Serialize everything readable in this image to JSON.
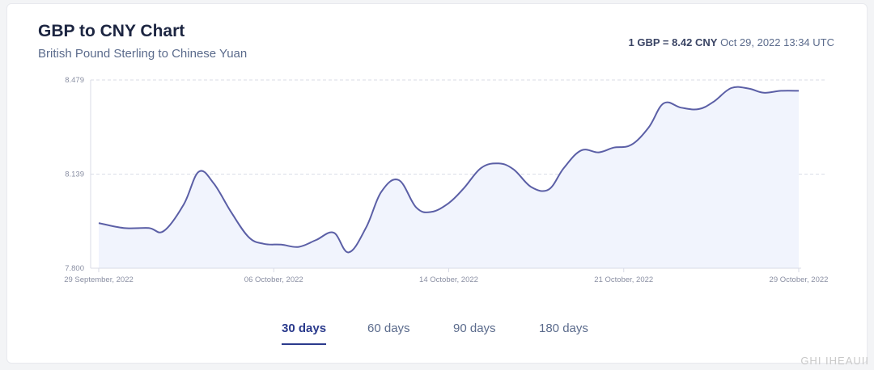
{
  "header": {
    "title": "GBP to CNY Chart",
    "subtitle": "British Pound Sterling to Chinese Yuan",
    "rate_strong": "1 GBP = 8.42 CNY",
    "rate_time": "Oct 29, 2022 13:34 UTC"
  },
  "tabs": [
    {
      "label": "30 days",
      "active": true
    },
    {
      "label": "60 days",
      "active": false
    },
    {
      "label": "90 days",
      "active": false
    },
    {
      "label": "180 days",
      "active": false
    }
  ],
  "watermark": "GHI IHEAUII",
  "colors": {
    "line": "#5b5fa6",
    "fill": "#f1f4fd",
    "grid": "#d8dbe6",
    "axis_text": "#8a8fa3"
  },
  "chart_data": {
    "type": "area",
    "title": "",
    "xlabel": "",
    "ylabel": "",
    "yticks": [
      "7.800",
      "8.139",
      "8.479"
    ],
    "ylim": [
      7.8,
      8.479
    ],
    "xticks": [
      {
        "label": "29 September, 2022",
        "x": 0
      },
      {
        "label": "06 October, 2022",
        "x": 7
      },
      {
        "label": "14 October, 2022",
        "x": 14
      },
      {
        "label": "21 October, 2022",
        "x": 21
      },
      {
        "label": "29 October, 2022",
        "x": 28
      }
    ],
    "x": [
      0,
      1,
      2,
      2.6,
      3.4,
      4,
      4.6,
      5.3,
      6,
      6.6,
      7.3,
      8,
      8.7,
      9.4,
      10,
      10.7,
      11.3,
      12,
      12.7,
      13.3,
      14,
      14.6,
      15.3,
      16,
      16.6,
      17.3,
      18,
      18.6,
      19.3,
      20,
      20.6,
      21.3,
      22,
      22.6,
      23.3,
      24,
      24.6,
      25.3,
      26,
      26.6,
      27.3,
      28
    ],
    "values": [
      7.963,
      7.945,
      7.945,
      7.934,
      8.03,
      8.148,
      8.106,
      8.002,
      7.912,
      7.888,
      7.885,
      7.877,
      7.902,
      7.928,
      7.857,
      7.948,
      8.075,
      8.118,
      8.019,
      8.003,
      8.035,
      8.088,
      8.162,
      8.178,
      8.156,
      8.093,
      8.084,
      8.161,
      8.225,
      8.218,
      8.235,
      8.245,
      8.308,
      8.395,
      8.379,
      8.374,
      8.401,
      8.45,
      8.448,
      8.433,
      8.44,
      8.44
    ]
  }
}
